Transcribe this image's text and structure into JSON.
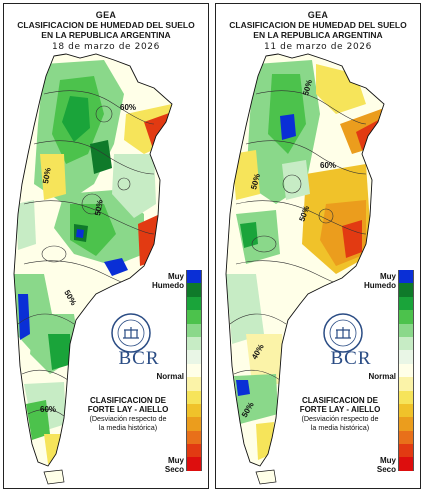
{
  "panels": [
    {
      "org": "GEA",
      "title_line1": "CLASIFICACION DE HUMEDAD DEL SUELO",
      "title_line2": "EN LA REPUBLICA ARGENTINA",
      "date": "18 de marzo de 2026",
      "contour_labels": [
        "60%",
        "50%",
        "50%",
        "50%",
        "60%"
      ]
    },
    {
      "org": "GEA",
      "title_line1": "CLASIFICACION DE HUMEDAD DEL SUELO",
      "title_line2": "EN LA REPUBLICA ARGENTINA",
      "date": "11 de marzo de 2026",
      "contour_labels": [
        "50%",
        "60%",
        "50%",
        "50%",
        "40%",
        "50%"
      ]
    }
  ],
  "legend": {
    "top_label_1": "Muy",
    "top_label_2": "Humedo",
    "mid_label": "Normal",
    "bottom_label_1": "Muy",
    "bottom_label_2": "Seco",
    "scale_colors": [
      "#0a2fd6",
      "#0f7a2a",
      "#1aa43a",
      "#4cc24c",
      "#8ad88a",
      "#c7ecc5",
      "#e9f6e6",
      "#ffffe8",
      "#fbf3a8",
      "#f6e45a",
      "#f0c22a",
      "#eb9d1d",
      "#e8701a",
      "#e23a12",
      "#dd0e0e"
    ]
  },
  "branding": {
    "logo": "BCR",
    "seal_text": "BOLSA DE COMERCIO DE ROSARIO"
  },
  "classification": {
    "title_line1": "CLASIFICACION DE",
    "title_line2": "FORTE LAY - AIELLO",
    "note_line1": "(Desviación respecto de",
    "note_line2": "la media histórica)"
  }
}
